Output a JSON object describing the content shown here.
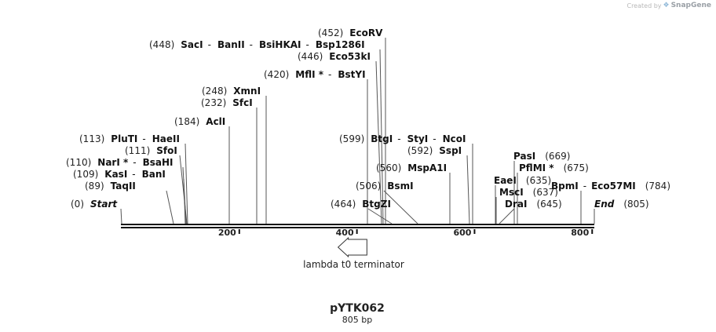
{
  "credit": {
    "prefix": "Created by",
    "brand": "SnapGene"
  },
  "plasmid": {
    "name": "pYTK062",
    "length": "805 bp"
  },
  "scale": {
    "start": 0,
    "end": 805,
    "ticks": [
      "200",
      "400",
      "600",
      "800"
    ]
  },
  "feature": {
    "name": "lambda t0 terminator",
    "start": 400,
    "end": 437,
    "direction": "reverse"
  },
  "sites": [
    {
      "group": "start",
      "pos": 0,
      "label_pos": "(0)",
      "names": [
        "Start"
      ],
      "terminal": true
    },
    {
      "group": "taqii",
      "pos": 89,
      "label_pos": "(89)",
      "names": [
        "TaqII"
      ]
    },
    {
      "group": "kasi",
      "pos": 109,
      "label_pos": "(109)",
      "names": [
        "KasI",
        "BanI"
      ]
    },
    {
      "group": "nari",
      "pos": 110,
      "label_pos": "(110)",
      "names": [
        "NarI *",
        "BsaHI"
      ]
    },
    {
      "group": "sfoi",
      "pos": 111,
      "label_pos": "(111)",
      "names": [
        "SfoI"
      ]
    },
    {
      "group": "pluti",
      "pos": 113,
      "label_pos": "(113)",
      "names": [
        "PluTI",
        "HaeII"
      ]
    },
    {
      "group": "acli",
      "pos": 184,
      "label_pos": "(184)",
      "names": [
        "AclI"
      ]
    },
    {
      "group": "sfci",
      "pos": 232,
      "label_pos": "(232)",
      "names": [
        "SfcI"
      ]
    },
    {
      "group": "xmni",
      "pos": 248,
      "label_pos": "(248)",
      "names": [
        "XmnI"
      ]
    },
    {
      "group": "mfli",
      "pos": 420,
      "label_pos": "(420)",
      "names": [
        "MflI *",
        "BstYI"
      ]
    },
    {
      "group": "eco53ki",
      "pos": 446,
      "label_pos": "(446)",
      "names": [
        "Eco53kI"
      ]
    },
    {
      "group": "saci",
      "pos": 448,
      "label_pos": "(448)",
      "names": [
        "SacI",
        "BanII",
        "BsiHKAI",
        "Bsp1286I"
      ]
    },
    {
      "group": "ecorv",
      "pos": 452,
      "label_pos": "(452)",
      "names": [
        "EcoRV"
      ]
    },
    {
      "group": "btgzi",
      "pos": 464,
      "label_pos": "(464)",
      "names": [
        "BtgZI"
      ]
    },
    {
      "group": "bsmi",
      "pos": 506,
      "label_pos": "(506)",
      "names": [
        "BsmI"
      ]
    },
    {
      "group": "mspa1i",
      "pos": 560,
      "label_pos": "(560)",
      "names": [
        "MspA1I"
      ]
    },
    {
      "group": "sspi",
      "pos": 592,
      "label_pos": "(592)",
      "names": [
        "SspI"
      ]
    },
    {
      "group": "btgi",
      "pos": 599,
      "label_pos": "(599)",
      "names": [
        "BtgI",
        "StyI",
        "NcoI"
      ]
    },
    {
      "group": "eaei",
      "pos": 635,
      "label_pos": "(635)",
      "names": [
        "EaeI"
      ]
    },
    {
      "group": "msci",
      "pos": 637,
      "label_pos": "(637)",
      "names": [
        "MscI"
      ]
    },
    {
      "group": "drai",
      "pos": 645,
      "label_pos": "(645)",
      "names": [
        "DraI"
      ]
    },
    {
      "group": "pasi",
      "pos": 669,
      "label_pos": "(669)",
      "names": [
        "PasI"
      ]
    },
    {
      "group": "pflmi",
      "pos": 675,
      "label_pos": "(675)",
      "names": [
        "PflMI *"
      ]
    },
    {
      "group": "bpmi",
      "pos": 784,
      "label_pos": "(784)",
      "names": [
        "BpmI",
        "Eco57MI"
      ]
    },
    {
      "group": "end",
      "pos": 805,
      "label_pos": "(805)",
      "names": [
        "End"
      ],
      "terminal": true
    }
  ]
}
